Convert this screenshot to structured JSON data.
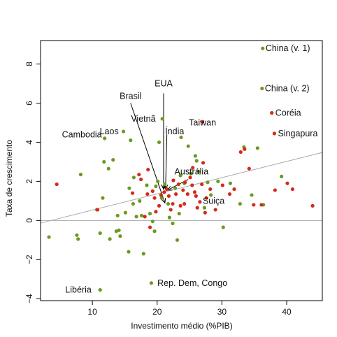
{
  "chart_data": {
    "type": "scatter",
    "title": "",
    "xlabel": "Investimento médio (%PIB)",
    "ylabel": "Taxa de crescimento",
    "xlim": [
      2.0,
      45.5
    ],
    "ylim": [
      -4.1,
      9.2
    ],
    "xticks": [
      10,
      20,
      30,
      40
    ],
    "yticks": [
      -4,
      -2,
      0,
      2,
      4,
      6,
      8
    ],
    "grid": false,
    "colors": {
      "green": "#6a9a1f",
      "red": "#d42a1a",
      "line": "#a9a9a9",
      "axis": "#000000"
    },
    "reference_lines": {
      "hline": 0,
      "fit": {
        "intercept": -0.3,
        "slope": 0.083
      }
    },
    "arrows": [
      {
        "from": [
          15.9,
          6.0
        ],
        "to": [
          21.2,
          0.9
        ]
      },
      {
        "from": [
          21.0,
          6.5
        ],
        "to": [
          21.0,
          1.6
        ]
      },
      {
        "from": [
          21.0,
          5.0
        ],
        "to": [
          21.0,
          1.6
        ]
      },
      {
        "from": [
          21.5,
          4.4
        ],
        "to": [
          21.3,
          1.6
        ]
      },
      {
        "from": [
          24.8,
          2.1
        ],
        "to": [
          21.6,
          1.55
        ]
      }
    ],
    "labels": [
      {
        "text": "China (v. 1)",
        "x": 36.2,
        "y": 8.8,
        "anchor": "start",
        "color": "green"
      },
      {
        "text": "China (v. 2)",
        "x": 36.1,
        "y": 6.75,
        "anchor": "start",
        "color": "green"
      },
      {
        "text": "Coréia",
        "x": 37.7,
        "y": 5.5,
        "anchor": "start",
        "color": "red"
      },
      {
        "text": "Singapura",
        "x": 38.1,
        "y": 4.45,
        "anchor": "start",
        "color": "red"
      },
      {
        "text": "Taiwan",
        "x": 27.0,
        "y": 5.0,
        "anchor": "middle",
        "color": "red"
      },
      {
        "text": "EUA",
        "x": 21.0,
        "y": 7.0,
        "anchor": "middle",
        "color": ""
      },
      {
        "text": "Brasil",
        "x": 15.9,
        "y": 6.35,
        "anchor": "middle",
        "color": ""
      },
      {
        "text": "Vietnã",
        "x": 20.3,
        "y": 5.2,
        "anchor": "end",
        "color": "green"
      },
      {
        "text": "Índia",
        "x": 22.7,
        "y": 4.55,
        "anchor": "middle",
        "color": ""
      },
      {
        "text": "Laos",
        "x": 14.6,
        "y": 4.55,
        "anchor": "end",
        "color": "green"
      },
      {
        "text": "Cambodia",
        "x": 12.0,
        "y": 4.4,
        "anchor": "end",
        "color": "green"
      },
      {
        "text": "Austrália",
        "x": 25.3,
        "y": 2.5,
        "anchor": "middle",
        "color": ""
      },
      {
        "text": "Suiça",
        "x": 26.5,
        "y": 1.0,
        "anchor": "start",
        "color": "red"
      },
      {
        "text": "Rep. Dem, Congo",
        "x": 19.5,
        "y": -3.2,
        "anchor": "start",
        "color": "green"
      },
      {
        "text": "Libéria",
        "x": 10.4,
        "y": -3.55,
        "anchor": "end",
        "color": "green"
      }
    ],
    "series": [
      {
        "name": "",
        "color": "green",
        "x": [
          36.3,
          36.2,
          14.8,
          11.9,
          20.8,
          23.7,
          20.3,
          11.8,
          3.3,
          7.8,
          7.6,
          8.2,
          10.7,
          11.2,
          11.6,
          12.7,
          12.5,
          13.9,
          13.2,
          14.3,
          13.7,
          15.1,
          15.6,
          15.7,
          15.9,
          16.3,
          16.8,
          17.3,
          17.9,
          17.6,
          18.4,
          18.9,
          16.4,
          19.3,
          19.6,
          19.8,
          20.1,
          20.7,
          21.2,
          21.7,
          21.9,
          22.4,
          22.8,
          23.1,
          23.6,
          23.4,
          24.2,
          24.8,
          25.2,
          25.9,
          26.1,
          26.4,
          27.3,
          27.8,
          28.3,
          29.4,
          30.2,
          31.3,
          32.8,
          33.4,
          34.6,
          35.5,
          36.4,
          39.2,
          14.1,
          19.1,
          11.2
        ],
        "y": [
          8.8,
          6.75,
          4.55,
          4.2,
          5.2,
          4.25,
          4.0,
          3.0,
          -0.85,
          -0.95,
          -0.75,
          2.35,
          0.55,
          -0.65,
          1.15,
          -0.95,
          2.65,
          0.25,
          3.1,
          -0.8,
          -0.55,
          0.4,
          -1.6,
          1.65,
          4.1,
          0.85,
          0.2,
          1.0,
          -1.7,
          0.25,
          1.8,
          0.35,
          2.2,
          -0.05,
          -0.55,
          1.75,
          2.0,
          1.15,
          1.85,
          0.85,
          0.15,
          -0.15,
          1.65,
          -1.0,
          2.3,
          0.35,
          1.9,
          3.8,
          2.4,
          3.3,
          3.05,
          2.5,
          0.65,
          1.95,
          1.3,
          2.0,
          -0.35,
          1.9,
          0.85,
          3.75,
          1.3,
          3.7,
          0.8,
          2.25,
          -0.5,
          -3.2,
          -3.55
        ]
      },
      {
        "name": "",
        "color": "red",
        "x": [
          37.7,
          38.1,
          27.0,
          4.5,
          10.8,
          16.2,
          17.2,
          18.1,
          18.5,
          18.9,
          19.3,
          19.6,
          19.8,
          20.3,
          20.6,
          21.1,
          21.5,
          21.8,
          22.1,
          22.4,
          22.9,
          23.3,
          23.6,
          24.0,
          24.3,
          24.7,
          25.1,
          25.4,
          25.8,
          26.2,
          26.6,
          26.9,
          27.1,
          24.2,
          25.5,
          27.6,
          28.2,
          29.0,
          30.1,
          31.2,
          31.9,
          32.9,
          33.5,
          34.2,
          34.9,
          36.1,
          38.2,
          40.1,
          40.9,
          44.0,
          17.5,
          18.6,
          22.5,
          26.0,
          27.4
        ],
        "y": [
          5.5,
          4.45,
          5.05,
          1.85,
          0.55,
          1.4,
          2.35,
          0.2,
          1.35,
          -0.35,
          1.5,
          1.15,
          0.45,
          0.75,
          1.3,
          1.45,
          1.6,
          1.25,
          0.55,
          0.85,
          1.35,
          1.85,
          0.75,
          1.55,
          1.95,
          1.35,
          2.2,
          1.8,
          1.45,
          0.65,
          0.95,
          1.85,
          2.95,
          0.85,
          2.7,
          1.15,
          1.6,
          0.55,
          1.8,
          1.35,
          1.6,
          3.5,
          3.65,
          2.65,
          0.8,
          0.8,
          1.55,
          1.9,
          1.6,
          0.75,
          2.1,
          2.6,
          2.05,
          1.25,
          0.4
        ]
      }
    ]
  }
}
